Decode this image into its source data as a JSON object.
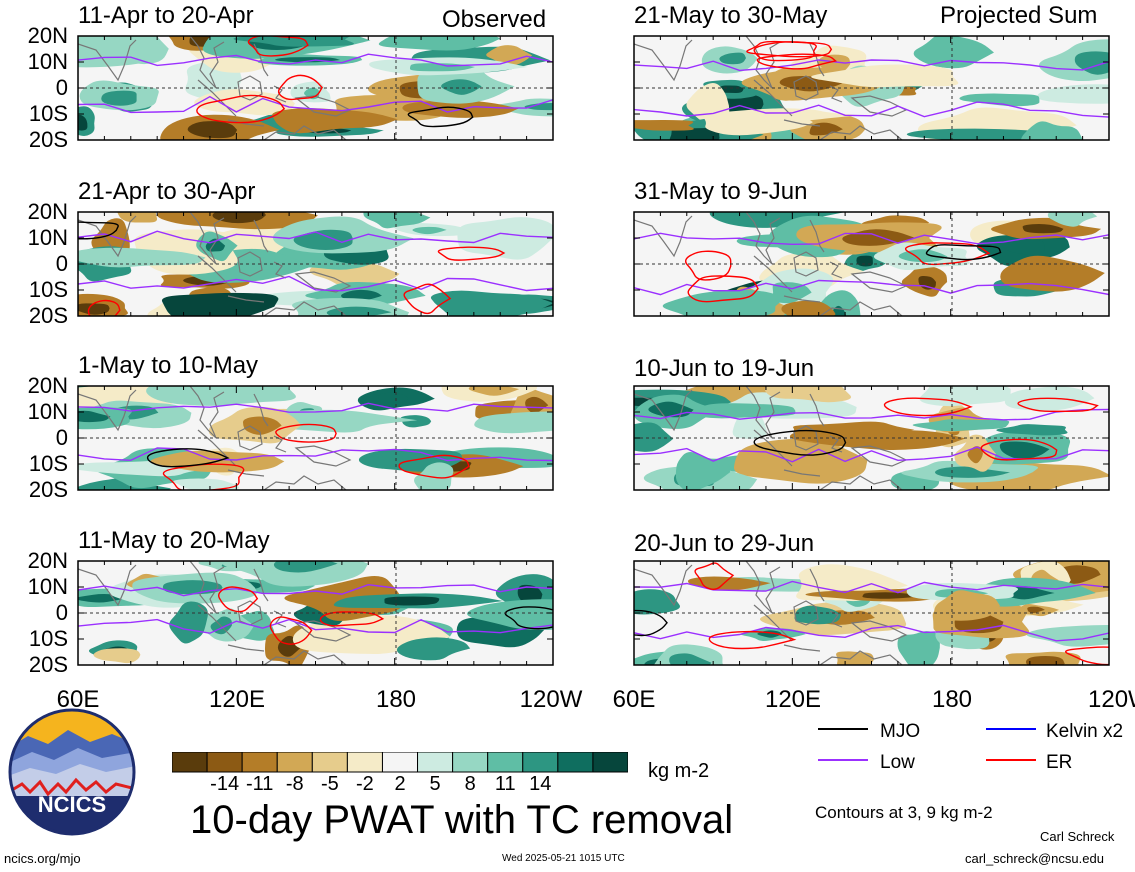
{
  "chart_data": {
    "type": "heatmap",
    "title": "10-day PWAT with TC removal",
    "columns": [
      {
        "label": "Observed",
        "panels": [
          "11-Apr to 20-Apr",
          "21-Apr to 30-Apr",
          "1-May to 10-May",
          "11-May to 20-May"
        ]
      },
      {
        "label": "Projected Sum",
        "panels": [
          "21-May to 30-May",
          "31-May to 9-Jun",
          "10-Jun to 19-Jun",
          "20-Jun to 29-Jun"
        ]
      }
    ],
    "y_ticks": [
      "20N",
      "10N",
      "0",
      "10S",
      "20S"
    ],
    "x_ticks": [
      "60E",
      "120E",
      "180",
      "120W"
    ],
    "x_range": [
      "60E",
      "120W"
    ],
    "y_range": [
      "20S",
      "20N"
    ],
    "colorbar": {
      "units": "kg m-2",
      "tick_labels": [
        "-14",
        "-11",
        "-8",
        "-5",
        "-2",
        "2",
        "5",
        "8",
        "11",
        "14"
      ],
      "colors": [
        "#5a3c0c",
        "#8c5a14",
        "#b47d28",
        "#d2a855",
        "#e6cc8c",
        "#f5ebc8",
        "#f5f5f5",
        "#cdebe1",
        "#96d7c3",
        "#5fbea5",
        "#2d9682",
        "#0f6e5f",
        "#06463c"
      ]
    },
    "legend": [
      {
        "label": "MJO",
        "color": "#000000"
      },
      {
        "label": "Kelvin x2",
        "color": "#0000ff"
      },
      {
        "label": "Low",
        "color": "#9b30ff"
      },
      {
        "label": "ER",
        "color": "#ff0000"
      }
    ],
    "contours_note": "Contours at 3, 9 kg m-2"
  },
  "footer": {
    "logo_text": "NCICS",
    "url": "ncics.org/mjo",
    "timestamp": "Wed 2025-05-21 1015 UTC",
    "author": "Carl Schreck",
    "email": "carl_schreck@ncsu.edu"
  },
  "colors": {
    "mjo": "#000000",
    "kelvin": "#0000ff",
    "low": "#9b30ff",
    "er": "#ff0000",
    "land": "#777777",
    "logo_navy": "#1e2d6e",
    "logo_sun": "#f5b41e"
  }
}
